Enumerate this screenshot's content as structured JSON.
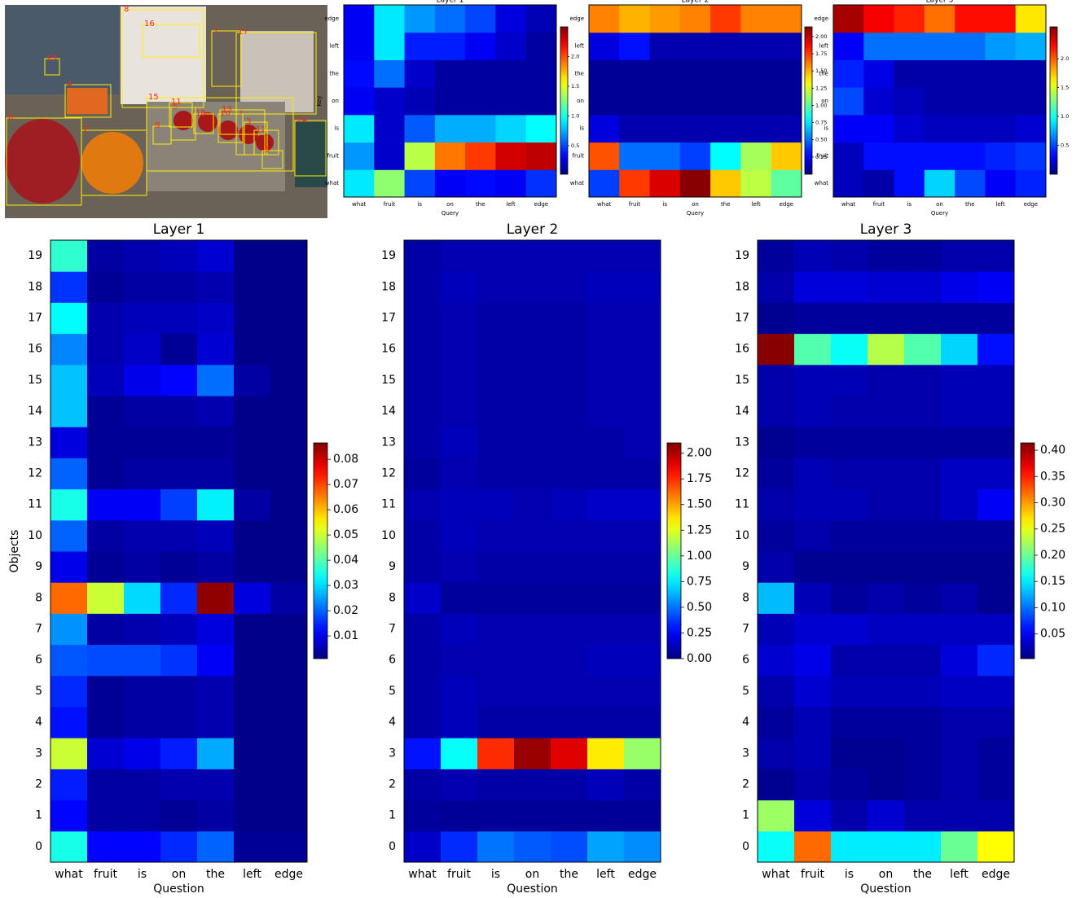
{
  "image": {
    "box_labels": [
      "0",
      "1",
      "2",
      "3",
      "4",
      "5",
      "6",
      "7",
      "8",
      "9",
      "10",
      "11",
      "12",
      "13",
      "14",
      "15",
      "16",
      "17",
      "18",
      "19"
    ]
  },
  "chart_data": [
    {
      "type": "heatmap",
      "title": "Layer 1",
      "x_label": "Query",
      "y_label": "Key",
      "colormap": "jet",
      "x_categories": [
        "what",
        "fruit",
        "is",
        "on",
        "the",
        "left",
        "edge"
      ],
      "y_categories": [
        "what",
        "fruit",
        "is",
        "on",
        "the",
        "left",
        "edge"
      ],
      "clim": [
        0.02,
        2.5
      ],
      "cbar_ticks": [
        0.5,
        {
          "value": 1,
          "label": "1.0"
        },
        1.5,
        {
          "value": 2,
          "label": "2.0"
        }
      ],
      "z": [
        [
          0.9,
          1.3,
          0.5,
          0.3,
          0.35,
          0.3,
          0.45
        ],
        [
          0.7,
          0.2,
          1.4,
          1.9,
          2.05,
          2.3,
          2.35
        ],
        [
          0.9,
          0.2,
          0.55,
          0.75,
          0.75,
          0.85,
          0.95
        ],
        [
          0.3,
          0.2,
          0.15,
          0.1,
          0.1,
          0.1,
          0.1
        ],
        [
          0.35,
          0.6,
          0.2,
          0.1,
          0.1,
          0.1,
          0.1
        ],
        [
          0.3,
          0.9,
          0.4,
          0.4,
          0.3,
          0.2,
          0.1
        ],
        [
          0.3,
          0.9,
          0.7,
          0.6,
          0.5,
          0.25,
          0.15
        ]
      ]
    },
    {
      "type": "heatmap",
      "title": "Layer 2",
      "x_label": "Query",
      "colormap": "jet",
      "x_categories": [
        "what",
        "fruit",
        "is",
        "on",
        "the",
        "left",
        "edge"
      ],
      "y_categories": [
        "what",
        "fruit",
        "is",
        "on",
        "the",
        "left",
        "edge"
      ],
      "clim": [
        0,
        2.14
      ],
      "cbar_ticks": [
        0.25,
        {
          "value": 0.5,
          "label": "0.50"
        },
        0.75,
        {
          "value": 1,
          "label": "1.00"
        },
        1.25,
        {
          "value": 1.5,
          "label": "1.50"
        },
        1.75,
        {
          "value": 2,
          "label": "2.00"
        }
      ],
      "z": [
        [
          0.4,
          1.75,
          1.95,
          2.12,
          1.45,
          1.2,
          1.0
        ],
        [
          1.7,
          0.5,
          0.5,
          0.4,
          0.8,
          1.15,
          1.45
        ],
        [
          0.2,
          0.1,
          0.1,
          0.1,
          0.1,
          0.1,
          0.1
        ],
        [
          0.05,
          0.05,
          0.05,
          0.05,
          0.05,
          0.05,
          0.05
        ],
        [
          0.05,
          0.05,
          0.05,
          0.05,
          0.05,
          0.05,
          0.05
        ],
        [
          0.2,
          0.3,
          0.1,
          0.1,
          0.1,
          0.1,
          0.1
        ],
        [
          1.6,
          1.5,
          1.55,
          1.6,
          1.75,
          1.6,
          1.6
        ]
      ]
    },
    {
      "type": "heatmap",
      "title": "Layer 3",
      "x_label": "Query",
      "colormap": "jet",
      "x_categories": [
        "what",
        "fruit",
        "is",
        "on",
        "the",
        "left",
        "edge"
      ],
      "y_categories": [
        "what",
        "fruit",
        "is",
        "on",
        "the",
        "left",
        "edge"
      ],
      "clim": [
        0,
        2.55
      ],
      "cbar_ticks": [
        0.5,
        {
          "value": 1,
          "label": "1.0"
        },
        1.5,
        {
          "value": 2,
          "label": "2.0"
        }
      ],
      "z": [
        [
          0.15,
          0.1,
          0.35,
          0.85,
          0.5,
          0.3,
          0.4
        ],
        [
          0.15,
          0.35,
          0.35,
          0.35,
          0.35,
          0.4,
          0.45
        ],
        [
          0.3,
          0.3,
          0.2,
          0.15,
          0.15,
          0.15,
          0.2
        ],
        [
          0.5,
          0.2,
          0.15,
          0.1,
          0.1,
          0.1,
          0.1
        ],
        [
          0.4,
          0.25,
          0.1,
          0.1,
          0.1,
          0.1,
          0.1
        ],
        [
          0.3,
          0.6,
          0.6,
          0.6,
          0.6,
          0.7,
          0.75
        ],
        [
          2.45,
          2.25,
          2.15,
          1.95,
          2.2,
          2.2,
          1.65
        ]
      ]
    },
    {
      "type": "heatmap",
      "title": "Layer 1",
      "x_label": "Question",
      "y_label": "Objects",
      "colormap": "jet",
      "x_categories": [
        "what",
        "fruit",
        "is",
        "on",
        "the",
        "left",
        "edge"
      ],
      "y_categories": [
        "0",
        "1",
        "2",
        "3",
        "4",
        "5",
        "6",
        "7",
        "8",
        "9",
        "10",
        "11",
        "12",
        "13",
        "14",
        "15",
        "16",
        "17",
        "18",
        "19"
      ],
      "clim": [
        0.001,
        0.0865
      ],
      "cbar_ticks": [
        0.01,
        0.02,
        0.03,
        0.04,
        0.05,
        0.06,
        0.07,
        0.08
      ],
      "z": [
        [
          0.035,
          0.012,
          0.012,
          0.015,
          0.02,
          0.003,
          0.003
        ],
        [
          0.012,
          0.004,
          0.004,
          0.003,
          0.004,
          0.002,
          0.002
        ],
        [
          0.014,
          0.004,
          0.004,
          0.005,
          0.005,
          0.002,
          0.002
        ],
        [
          0.05,
          0.008,
          0.01,
          0.014,
          0.026,
          0.002,
          0.002
        ],
        [
          0.013,
          0.003,
          0.004,
          0.004,
          0.005,
          0.002,
          0.002
        ],
        [
          0.015,
          0.003,
          0.004,
          0.004,
          0.005,
          0.002,
          0.002
        ],
        [
          0.019,
          0.018,
          0.018,
          0.016,
          0.011,
          0.002,
          0.002
        ],
        [
          0.024,
          0.004,
          0.005,
          0.006,
          0.009,
          0.002,
          0.002
        ],
        [
          0.067,
          0.05,
          0.03,
          0.015,
          0.085,
          0.009,
          0.004
        ],
        [
          0.01,
          0.003,
          0.004,
          0.003,
          0.004,
          0.002,
          0.002
        ],
        [
          0.02,
          0.004,
          0.005,
          0.005,
          0.006,
          0.002,
          0.002
        ],
        [
          0.035,
          0.011,
          0.011,
          0.017,
          0.032,
          0.004,
          0.002
        ],
        [
          0.02,
          0.003,
          0.004,
          0.004,
          0.004,
          0.002,
          0.002
        ],
        [
          0.009,
          0.003,
          0.003,
          0.003,
          0.003,
          0.002,
          0.002
        ],
        [
          0.028,
          0.003,
          0.004,
          0.004,
          0.005,
          0.002,
          0.002
        ],
        [
          0.028,
          0.006,
          0.01,
          0.012,
          0.021,
          0.004,
          0.002
        ],
        [
          0.023,
          0.005,
          0.007,
          0.003,
          0.008,
          0.002,
          0.002
        ],
        [
          0.033,
          0.005,
          0.006,
          0.006,
          0.007,
          0.002,
          0.002
        ],
        [
          0.016,
          0.003,
          0.004,
          0.004,
          0.005,
          0.002,
          0.002
        ],
        [
          0.037,
          0.004,
          0.005,
          0.006,
          0.008,
          0.002,
          0.002
        ]
      ]
    },
    {
      "type": "heatmap",
      "title": "Layer 2",
      "x_label": "Question",
      "colormap": "jet",
      "x_categories": [
        "what",
        "fruit",
        "is",
        "on",
        "the",
        "left",
        "edge"
      ],
      "y_categories": [
        "0",
        "1",
        "2",
        "3",
        "4",
        "5",
        "6",
        "7",
        "8",
        "9",
        "10",
        "11",
        "12",
        "13",
        "14",
        "15",
        "16",
        "17",
        "18",
        "19"
      ],
      "clim": [
        0,
        2.1
      ],
      "cbar_ticks": [
        {
          "value": 0,
          "label": "0.00"
        },
        0.25,
        {
          "value": 0.5,
          "label": "0.50"
        },
        0.75,
        {
          "value": 1,
          "label": "1.00"
        },
        1.25,
        {
          "value": 1.5,
          "label": "1.50"
        },
        1.75,
        {
          "value": 2,
          "label": "2.00"
        }
      ],
      "z": [
        [
          0.15,
          0.35,
          0.5,
          0.45,
          0.42,
          0.6,
          0.55
        ],
        [
          0.06,
          0.05,
          0.05,
          0.05,
          0.05,
          0.05,
          0.05
        ],
        [
          0.08,
          0.1,
          0.08,
          0.08,
          0.08,
          0.12,
          0.08
        ],
        [
          0.3,
          0.8,
          1.75,
          2.05,
          1.9,
          1.35,
          1.1
        ],
        [
          0.08,
          0.12,
          0.08,
          0.08,
          0.08,
          0.08,
          0.08
        ],
        [
          0.08,
          0.12,
          0.1,
          0.1,
          0.1,
          0.1,
          0.1
        ],
        [
          0.08,
          0.1,
          0.1,
          0.1,
          0.1,
          0.12,
          0.12
        ],
        [
          0.08,
          0.12,
          0.1,
          0.1,
          0.1,
          0.1,
          0.1
        ],
        [
          0.15,
          0.06,
          0.06,
          0.06,
          0.06,
          0.06,
          0.06
        ],
        [
          0.08,
          0.1,
          0.08,
          0.08,
          0.08,
          0.08,
          0.08
        ],
        [
          0.08,
          0.12,
          0.1,
          0.1,
          0.1,
          0.1,
          0.1
        ],
        [
          0.1,
          0.12,
          0.12,
          0.1,
          0.12,
          0.15,
          0.15
        ],
        [
          0.06,
          0.1,
          0.08,
          0.08,
          0.08,
          0.08,
          0.08
        ],
        [
          0.08,
          0.12,
          0.08,
          0.08,
          0.08,
          0.08,
          0.1
        ],
        [
          0.08,
          0.1,
          0.08,
          0.08,
          0.08,
          0.1,
          0.1
        ],
        [
          0.08,
          0.1,
          0.08,
          0.08,
          0.08,
          0.1,
          0.1
        ],
        [
          0.08,
          0.1,
          0.08,
          0.08,
          0.08,
          0.1,
          0.1
        ],
        [
          0.08,
          0.1,
          0.08,
          0.08,
          0.08,
          0.1,
          0.1
        ],
        [
          0.08,
          0.12,
          0.1,
          0.1,
          0.1,
          0.12,
          0.12
        ],
        [
          0.08,
          0.1,
          0.1,
          0.1,
          0.1,
          0.1,
          0.1
        ]
      ]
    },
    {
      "type": "heatmap",
      "title": "Layer 3",
      "x_label": "Question",
      "colormap": "jet",
      "x_categories": [
        "what",
        "fruit",
        "is",
        "on",
        "the",
        "left",
        "edge"
      ],
      "y_categories": [
        "0",
        "1",
        "2",
        "3",
        "4",
        "5",
        "6",
        "7",
        "8",
        "9",
        "10",
        "11",
        "12",
        "13",
        "14",
        "15",
        "16",
        "17",
        "18",
        "19"
      ],
      "clim": [
        0.003,
        0.414
      ],
      "cbar_ticks": [
        0.05,
        {
          "value": 0.1,
          "label": "0.10"
        },
        0.15,
        {
          "value": 0.2,
          "label": "0.20"
        },
        0.25,
        {
          "value": 0.3,
          "label": "0.30"
        },
        0.35,
        {
          "value": 0.4,
          "label": "0.40"
        }
      ],
      "z": [
        [
          0.16,
          0.32,
          0.15,
          0.15,
          0.15,
          0.2,
          0.26
        ],
        [
          0.22,
          0.04,
          0.02,
          0.035,
          0.02,
          0.02,
          0.02
        ],
        [
          0.01,
          0.02,
          0.015,
          0.01,
          0.015,
          0.02,
          0.015
        ],
        [
          0.02,
          0.025,
          0.01,
          0.01,
          0.015,
          0.02,
          0.015
        ],
        [
          0.015,
          0.025,
          0.015,
          0.015,
          0.015,
          0.02,
          0.02
        ],
        [
          0.02,
          0.035,
          0.025,
          0.025,
          0.025,
          0.03,
          0.03
        ],
        [
          0.035,
          0.045,
          0.02,
          0.02,
          0.02,
          0.04,
          0.07
        ],
        [
          0.025,
          0.035,
          0.035,
          0.03,
          0.03,
          0.03,
          0.03
        ],
        [
          0.13,
          0.025,
          0.015,
          0.02,
          0.015,
          0.02,
          0.01
        ],
        [
          0.02,
          0.01,
          0.01,
          0.01,
          0.01,
          0.01,
          0.01
        ],
        [
          0.015,
          0.02,
          0.015,
          0.015,
          0.015,
          0.015,
          0.015
        ],
        [
          0.02,
          0.025,
          0.025,
          0.02,
          0.02,
          0.03,
          0.05
        ],
        [
          0.015,
          0.025,
          0.02,
          0.02,
          0.02,
          0.03,
          0.03
        ],
        [
          0.01,
          0.015,
          0.015,
          0.015,
          0.015,
          0.015,
          0.015
        ],
        [
          0.02,
          0.025,
          0.02,
          0.02,
          0.02,
          0.025,
          0.025
        ],
        [
          0.02,
          0.025,
          0.025,
          0.02,
          0.02,
          0.025,
          0.025
        ],
        [
          0.41,
          0.19,
          0.16,
          0.23,
          0.19,
          0.14,
          0.06
        ],
        [
          0.01,
          0.015,
          0.015,
          0.015,
          0.015,
          0.015,
          0.015
        ],
        [
          0.02,
          0.04,
          0.04,
          0.035,
          0.035,
          0.045,
          0.05
        ],
        [
          0.015,
          0.025,
          0.02,
          0.015,
          0.015,
          0.02,
          0.02
        ]
      ]
    }
  ]
}
